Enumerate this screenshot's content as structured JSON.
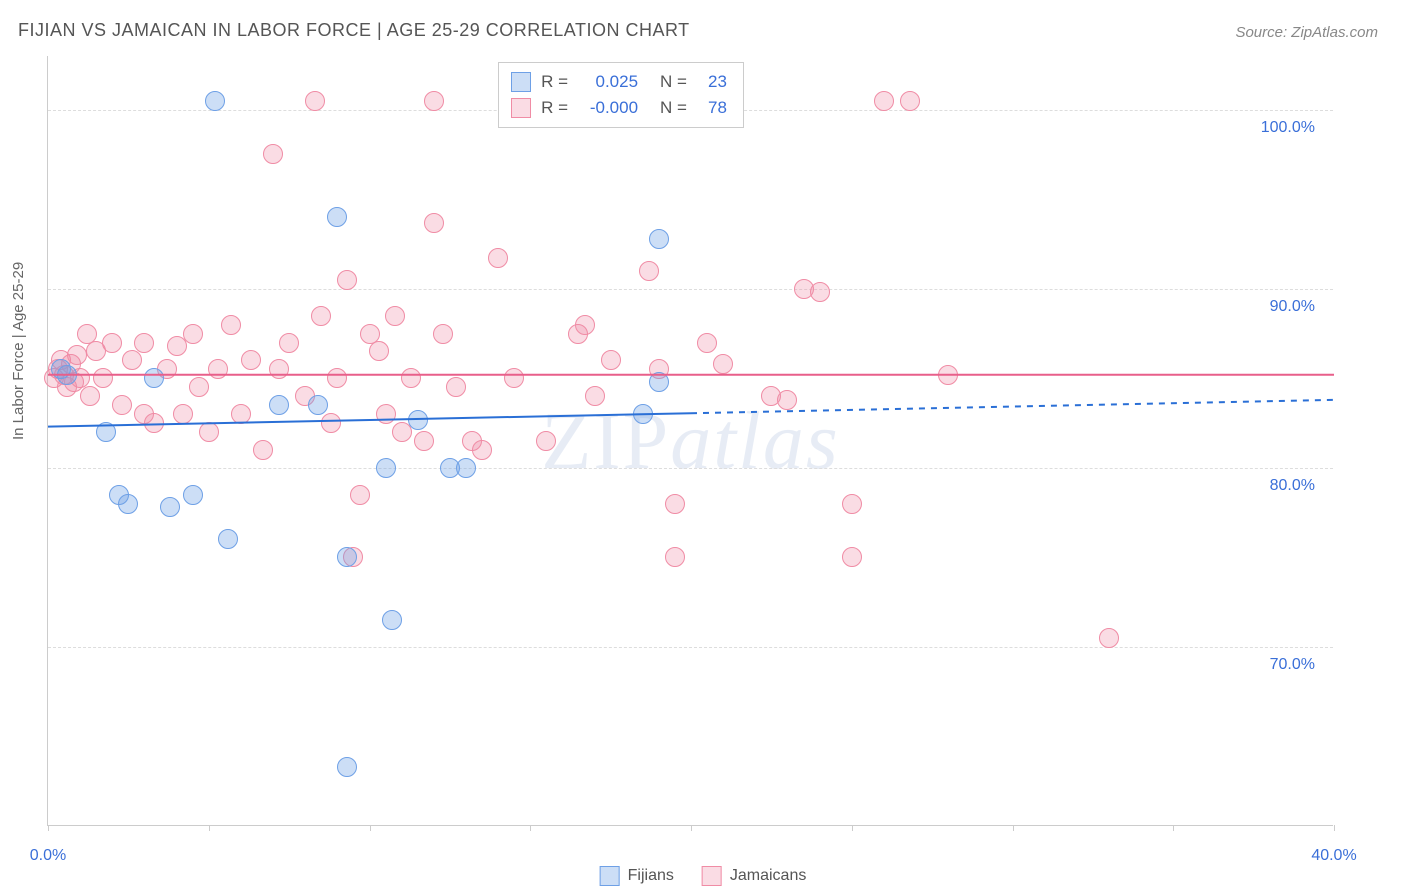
{
  "title": "FIJIAN VS JAMAICAN IN LABOR FORCE | AGE 25-29 CORRELATION CHART",
  "source": "Source: ZipAtlas.com",
  "y_axis_label": "In Labor Force | Age 25-29",
  "watermark": {
    "part1": "ZIP",
    "part2": "atlas"
  },
  "chart": {
    "type": "scatter",
    "background_color": "#ffffff",
    "grid_color": "#dddddd",
    "axis_color": "#cccccc",
    "tick_label_color": "#3a6fd8",
    "xlim": [
      0,
      40
    ],
    "ylim": [
      60,
      103
    ],
    "y_ticks": [
      70,
      80,
      90,
      100
    ],
    "y_tick_labels": [
      "70.0%",
      "80.0%",
      "90.0%",
      "100.0%"
    ],
    "x_ticks": [
      0,
      5,
      10,
      15,
      20,
      25,
      30,
      35,
      40
    ],
    "x_tick_labels_shown": {
      "0": "0.0%",
      "40": "40.0%"
    },
    "series": [
      {
        "name": "Fijians",
        "legend_label": "Fijians",
        "marker_fill": "rgba(110,160,230,0.35)",
        "marker_stroke": "#6ea0e6",
        "marker_radius": 10,
        "trend_color": "#2a6fd6",
        "trend_width": 2,
        "trend_y_start": 82.3,
        "trend_y_end": 83.8,
        "trend_solid_until_x": 20,
        "r_value": "0.025",
        "n_value": "23",
        "points": [
          [
            0.4,
            85.5
          ],
          [
            0.6,
            85.2
          ],
          [
            1.8,
            82.0
          ],
          [
            2.2,
            78.5
          ],
          [
            2.5,
            78.0
          ],
          [
            3.3,
            85.0
          ],
          [
            3.8,
            77.8
          ],
          [
            4.5,
            78.5
          ],
          [
            5.2,
            100.5
          ],
          [
            5.6,
            76.0
          ],
          [
            7.2,
            83.5
          ],
          [
            8.4,
            83.5
          ],
          [
            9.0,
            94.0
          ],
          [
            9.3,
            75.0
          ],
          [
            9.3,
            63.3
          ],
          [
            10.5,
            80.0
          ],
          [
            10.7,
            71.5
          ],
          [
            11.5,
            82.7
          ],
          [
            12.5,
            80.0
          ],
          [
            13.0,
            80.0
          ],
          [
            18.5,
            83.0
          ],
          [
            19.0,
            92.8
          ],
          [
            19.0,
            84.8
          ]
        ]
      },
      {
        "name": "Jamaicans",
        "legend_label": "Jamaicans",
        "marker_fill": "rgba(240,140,165,0.30)",
        "marker_stroke": "#f08ca5",
        "marker_radius": 10,
        "trend_color": "#e85f8a",
        "trend_width": 2,
        "trend_y_start": 85.2,
        "trend_y_end": 85.2,
        "trend_solid_until_x": 40,
        "r_value": "-0.000",
        "n_value": "78",
        "points": [
          [
            0.2,
            85.0
          ],
          [
            0.3,
            85.5
          ],
          [
            0.4,
            86.0
          ],
          [
            0.5,
            85.2
          ],
          [
            0.6,
            84.5
          ],
          [
            0.7,
            85.8
          ],
          [
            0.8,
            84.8
          ],
          [
            0.9,
            86.3
          ],
          [
            1.0,
            85.0
          ],
          [
            1.2,
            87.5
          ],
          [
            1.3,
            84.0
          ],
          [
            1.5,
            86.5
          ],
          [
            1.7,
            85.0
          ],
          [
            2.0,
            87.0
          ],
          [
            2.3,
            83.5
          ],
          [
            2.6,
            86.0
          ],
          [
            3.0,
            87.0
          ],
          [
            3.0,
            83.0
          ],
          [
            3.3,
            82.5
          ],
          [
            3.7,
            85.5
          ],
          [
            4.0,
            86.8
          ],
          [
            4.2,
            83.0
          ],
          [
            4.5,
            87.5
          ],
          [
            4.7,
            84.5
          ],
          [
            5.0,
            82.0
          ],
          [
            5.3,
            85.5
          ],
          [
            5.7,
            88.0
          ],
          [
            6.0,
            83.0
          ],
          [
            6.3,
            86.0
          ],
          [
            6.7,
            81.0
          ],
          [
            7.0,
            97.5
          ],
          [
            7.2,
            85.5
          ],
          [
            7.5,
            87.0
          ],
          [
            8.0,
            84.0
          ],
          [
            8.3,
            100.5
          ],
          [
            8.5,
            88.5
          ],
          [
            8.8,
            82.5
          ],
          [
            9.0,
            85.0
          ],
          [
            9.3,
            90.5
          ],
          [
            9.5,
            75.0
          ],
          [
            9.7,
            78.5
          ],
          [
            10.0,
            87.5
          ],
          [
            10.3,
            86.5
          ],
          [
            10.5,
            83.0
          ],
          [
            10.8,
            88.5
          ],
          [
            11.0,
            82.0
          ],
          [
            11.3,
            85.0
          ],
          [
            11.7,
            81.5
          ],
          [
            12.0,
            93.7
          ],
          [
            12.0,
            100.5
          ],
          [
            12.3,
            87.5
          ],
          [
            12.7,
            84.5
          ],
          [
            13.2,
            81.5
          ],
          [
            13.5,
            81.0
          ],
          [
            14.0,
            91.7
          ],
          [
            14.5,
            85.0
          ],
          [
            15.5,
            81.5
          ],
          [
            16.5,
            87.5
          ],
          [
            16.7,
            88.0
          ],
          [
            17.0,
            84.0
          ],
          [
            17.5,
            86.0
          ],
          [
            18.5,
            100.5
          ],
          [
            18.7,
            91.0
          ],
          [
            19.0,
            85.5
          ],
          [
            19.5,
            78.0
          ],
          [
            19.5,
            75.0
          ],
          [
            20.5,
            87.0
          ],
          [
            21.0,
            85.8
          ],
          [
            22.5,
            84.0
          ],
          [
            23.0,
            83.8
          ],
          [
            23.5,
            90.0
          ],
          [
            24.0,
            89.8
          ],
          [
            25.0,
            78.0
          ],
          [
            25.0,
            75.0
          ],
          [
            26.0,
            100.5
          ],
          [
            26.8,
            100.5
          ],
          [
            28.0,
            85.2
          ],
          [
            33.0,
            70.5
          ]
        ]
      }
    ]
  },
  "correlation_legend": {
    "r_label": "R =",
    "n_label": "N ="
  },
  "bottom_legend": [
    {
      "label": "Fijians",
      "fill": "rgba(110,160,230,0.35)",
      "stroke": "#6ea0e6"
    },
    {
      "label": "Jamaicans",
      "fill": "rgba(240,140,165,0.30)",
      "stroke": "#f08ca5"
    }
  ]
}
